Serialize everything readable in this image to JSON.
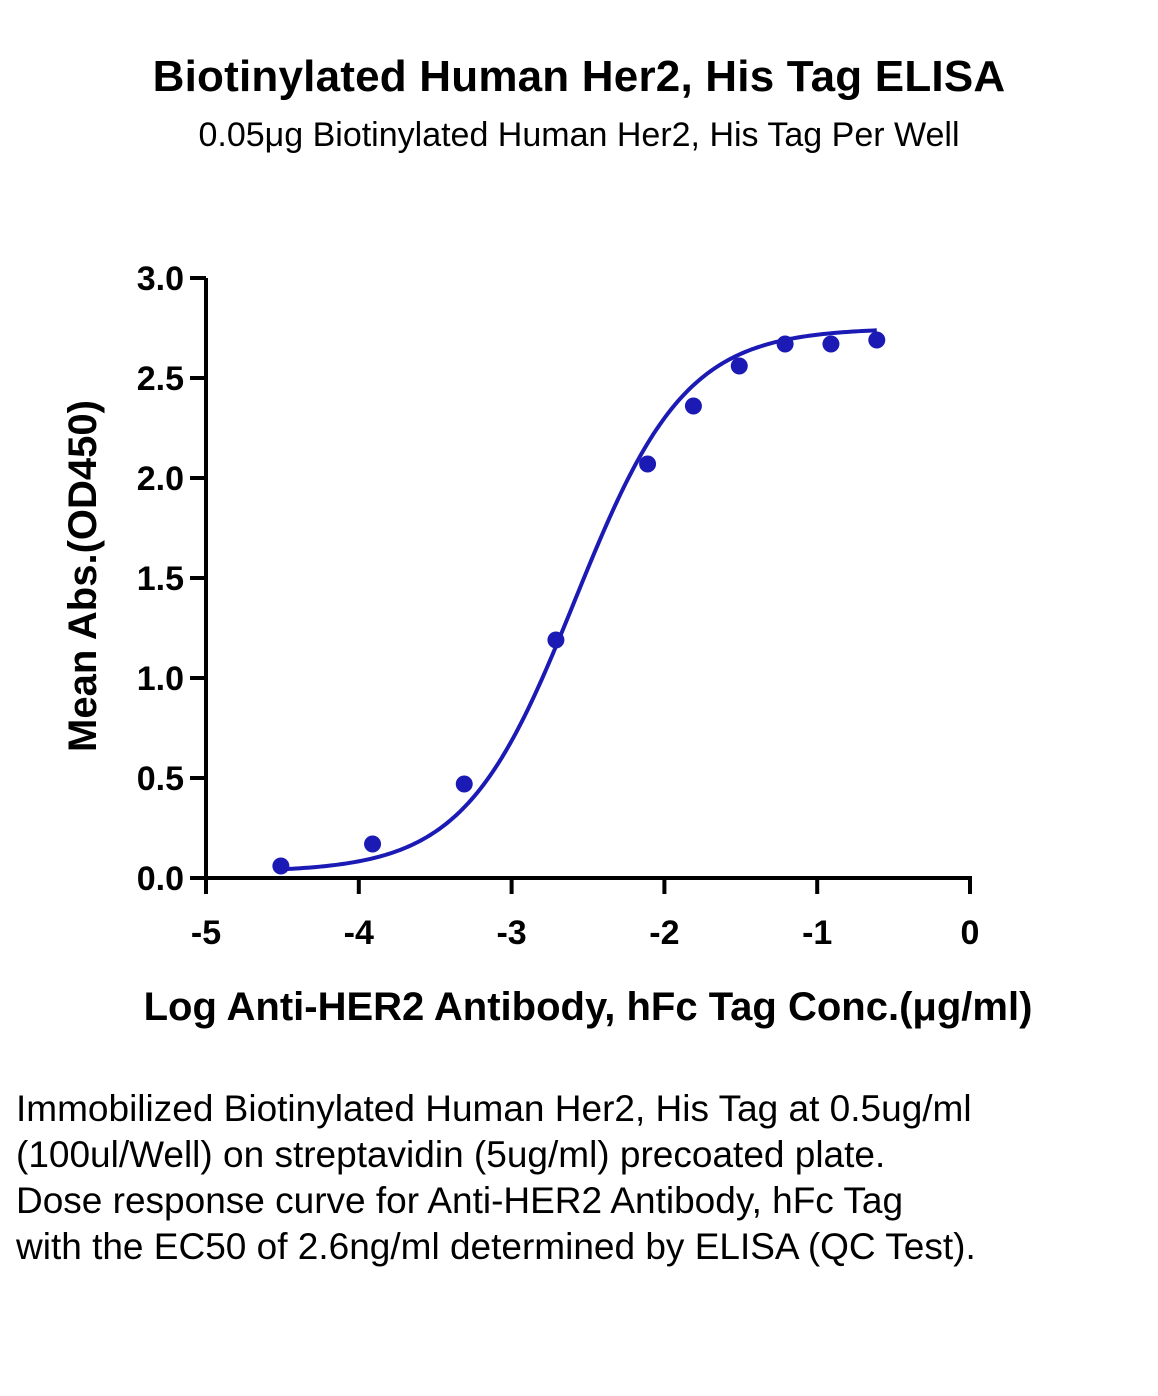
{
  "chart_data": {
    "type": "scatter",
    "title": "Biotinylated Human Her2, His Tag ELISA",
    "subtitle": "0.05μg Biotinylated Human Her2, His Tag Per Well",
    "xlabel": "Log Anti-HER2 Antibody, hFc Tag Conc.(μg/ml)",
    "ylabel": "Mean Abs.(OD450)",
    "xlim": [
      -5,
      0
    ],
    "ylim": [
      0,
      3
    ],
    "x_ticks": [
      "-5",
      "-4",
      "-3",
      "-2",
      "-1",
      "0"
    ],
    "y_ticks": [
      "0.0",
      "0.5",
      "1.0",
      "1.5",
      "2.0",
      "2.5",
      "3.0"
    ],
    "grid": false,
    "series": [
      {
        "x": [
          -4.51,
          -3.91,
          -3.31,
          -2.71,
          -2.11,
          -1.81,
          -1.51,
          -1.21,
          -0.91,
          -0.61
        ],
        "y": [
          0.06,
          0.17,
          0.47,
          1.19,
          2.07,
          2.36,
          2.56,
          2.67,
          2.67,
          2.69
        ],
        "color": "#1c1ab4",
        "fit": "four-parameter logistic",
        "fit_params": {
          "bottom": 0.03,
          "top": 2.75,
          "log_ec50": -2.585,
          "hill": 1.2
        }
      }
    ]
  },
  "caption": "Immobilized Biotinylated Human Her2, His Tag at 0.5ug/ml (100ul/Well) on streptavidin (5ug/ml) precoated plate. Dose response curve for Anti-HER2 Antibody, hFc Tag with the EC50 of 2.6ng/ml determined by ELISA (QC Test)."
}
